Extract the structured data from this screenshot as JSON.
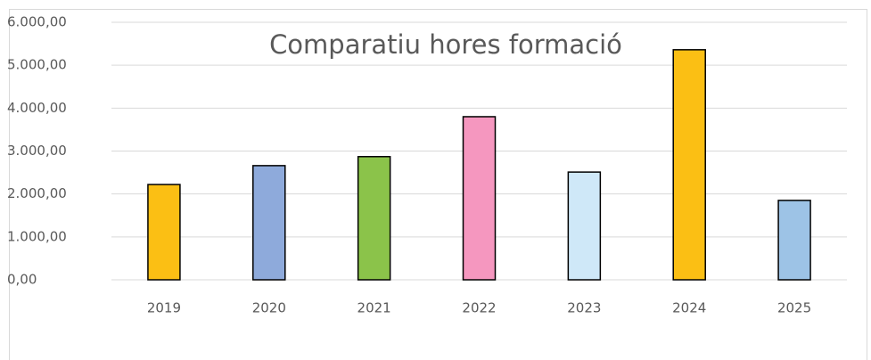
{
  "chart_data": {
    "type": "bar",
    "title": "Comparatiu hores formació",
    "categories": [
      "2019",
      "2020",
      "2021",
      "2022",
      "2023",
      "2024",
      "2025"
    ],
    "values": [
      2220,
      2660,
      2870,
      3800,
      2510,
      5360,
      1850
    ],
    "colors": [
      "#fbbf14",
      "#8eaadb",
      "#8bc34a",
      "#f597bf",
      "#cfe8f8",
      "#fbbf14",
      "#9dc3e6"
    ],
    "ylim": [
      0,
      6000
    ],
    "yticks": [
      {
        "value": 0,
        "label": "0,00"
      },
      {
        "value": 1000,
        "label": "1.000,00"
      },
      {
        "value": 2000,
        "label": "2.000,00"
      },
      {
        "value": 3000,
        "label": "3.000,00"
      },
      {
        "value": 4000,
        "label": "4.000,00"
      },
      {
        "value": 5000,
        "label": "5.000,00"
      },
      {
        "value": 6000,
        "label": "6.000,00"
      }
    ],
    "grid": true
  }
}
